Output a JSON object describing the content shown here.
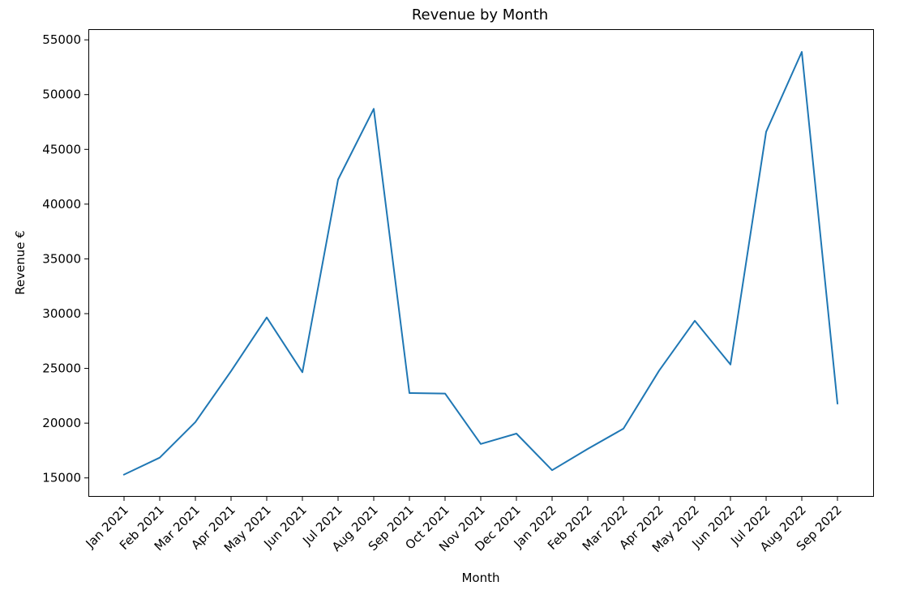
{
  "chart_data": {
    "type": "line",
    "title": "Revenue by Month",
    "xlabel": "Month",
    "ylabel": "Revenue €",
    "categories": [
      "Jan 2021",
      "Feb 2021",
      "Mar 2021",
      "Apr 2021",
      "May 2021",
      "Jun 2021",
      "Jul 2021",
      "Aug 2021",
      "Sep 2021",
      "Oct 2021",
      "Nov 2021",
      "Dec 2021",
      "Jan 2022",
      "Feb 2022",
      "Mar 2022",
      "Apr 2022",
      "May 2022",
      "Jun 2022",
      "Jul 2022",
      "Aug 2022",
      "Sep 2022"
    ],
    "series": [
      {
        "color": "#1f77b4",
        "values": [
          15300,
          16850,
          20100,
          24750,
          29650,
          24650,
          42250,
          48700,
          22750,
          22700,
          18100,
          19050,
          15700,
          17650,
          19500,
          24800,
          29350,
          25350,
          46600,
          53900,
          21800
        ]
      }
    ],
    "ylim": [
      13350,
      55900
    ],
    "yticks": [
      15000,
      20000,
      25000,
      30000,
      35000,
      40000,
      45000,
      50000,
      55000
    ],
    "grid": false,
    "legend": false
  }
}
